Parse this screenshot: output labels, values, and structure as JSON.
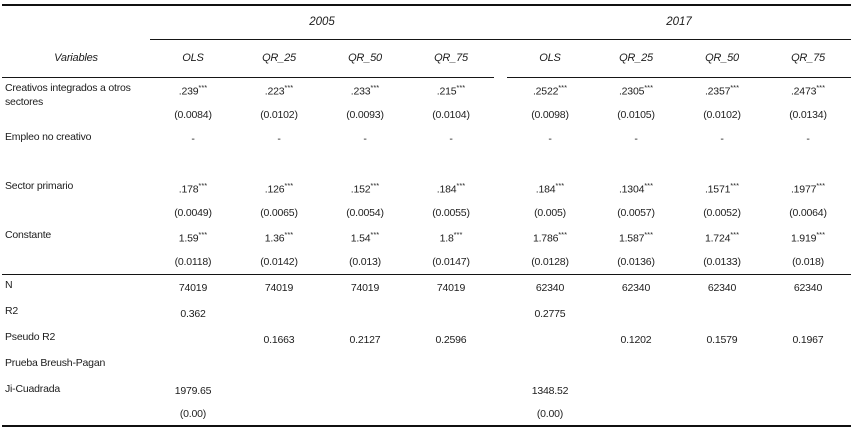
{
  "table": {
    "stub_header": "Variables",
    "year_groups": [
      {
        "label": "2005"
      },
      {
        "label": "2017"
      }
    ],
    "column_headers": [
      "OLS",
      "QR_25",
      "QR_50",
      "QR_75",
      "OLS",
      "QR_25",
      "QR_50",
      "QR_75"
    ],
    "variable_rows": [
      {
        "label": "Creativos integrados a otros sectores",
        "values": [
          ".239***",
          ".223***",
          ".233***",
          ".215***",
          ".2522***",
          ".2305***",
          ".2357***",
          ".2473***"
        ],
        "se": [
          "(0.0084)",
          "(0.0102)",
          "(0.0093)",
          "(0.0104)",
          "(0.0098)",
          "(0.0105)",
          "(0.0102)",
          "(0.0134)"
        ]
      },
      {
        "label": "Empleo no creativo",
        "values": [
          "-",
          "-",
          "-",
          "-",
          "-",
          "-",
          "-",
          "-"
        ],
        "se": [
          "",
          "",
          "",
          "",
          "",
          "",
          "",
          ""
        ]
      },
      {
        "label": "Sector primario",
        "values": [
          ".178***",
          ".126***",
          ".152***",
          ".184***",
          ".184***",
          ".1304***",
          ".1571***",
          ".1977***"
        ],
        "se": [
          "(0.0049)",
          "(0.0065)",
          "(0.0054)",
          "(0.0055)",
          "(0.005)",
          "(0.0057)",
          "(0.0052)",
          "(0.0064)"
        ]
      },
      {
        "label": "Constante",
        "values": [
          "1.59***",
          "1.36***",
          "1.54***",
          "1.8***",
          "1.786***",
          "1.587***",
          "1.724***",
          "1.919***"
        ],
        "se": [
          "(0.0118)",
          "(0.0142)",
          "(0.013)",
          "(0.0147)",
          "(0.0128)",
          "(0.0136)",
          "(0.0133)",
          "(0.018)"
        ]
      }
    ],
    "stat_rows": [
      {
        "label": "N",
        "values": [
          "74019",
          "74019",
          "74019",
          "74019",
          "62340",
          "62340",
          "62340",
          "62340"
        ]
      },
      {
        "label": "R2",
        "values": [
          "0.362",
          "",
          "",
          "",
          "0.2775",
          "",
          "",
          ""
        ]
      },
      {
        "label": "Pseudo R2",
        "values": [
          "",
          "0.1663",
          "0.2127",
          "0.2596",
          "",
          "0.1202",
          "0.1579",
          "0.1967"
        ]
      },
      {
        "label": "Prueba Breush-Pagan",
        "values": [
          "",
          "",
          "",
          "",
          "",
          "",
          "",
          ""
        ]
      },
      {
        "label": "Ji-Cuadrada",
        "values": [
          "1979.65",
          "",
          "",
          "",
          "1348.52",
          "",
          "",
          ""
        ],
        "se": [
          "(0.00)",
          "",
          "",
          "",
          "(0.00)",
          "",
          "",
          ""
        ]
      }
    ]
  }
}
